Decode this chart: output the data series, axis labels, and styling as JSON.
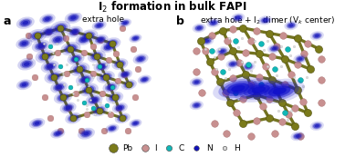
{
  "title": "I$_2$ formation in bulk FAPI",
  "panel_a_label": "a",
  "panel_b_label": "b",
  "panel_a_subtitle": "extra hole",
  "panel_b_subtitle": "extra hole + I$_2$ dimer (V$_k$ center)",
  "legend_items": [
    {
      "label": "Pb",
      "color": "#7a7a1a",
      "size": 7.0
    },
    {
      "label": "I",
      "color": "#C89090",
      "size": 5.5
    },
    {
      "label": "C",
      "color": "#10B8B8",
      "size": 4.5
    },
    {
      "label": "N",
      "color": "#1010BB",
      "size": 4.0
    },
    {
      "label": "H",
      "color": "#D8D8D8",
      "size": 3.2
    }
  ],
  "background_color": "#ffffff",
  "title_fontsize": 8.5,
  "subtitle_fontsize": 6.5,
  "label_fontsize": 9,
  "legend_fontsize": 6.5
}
